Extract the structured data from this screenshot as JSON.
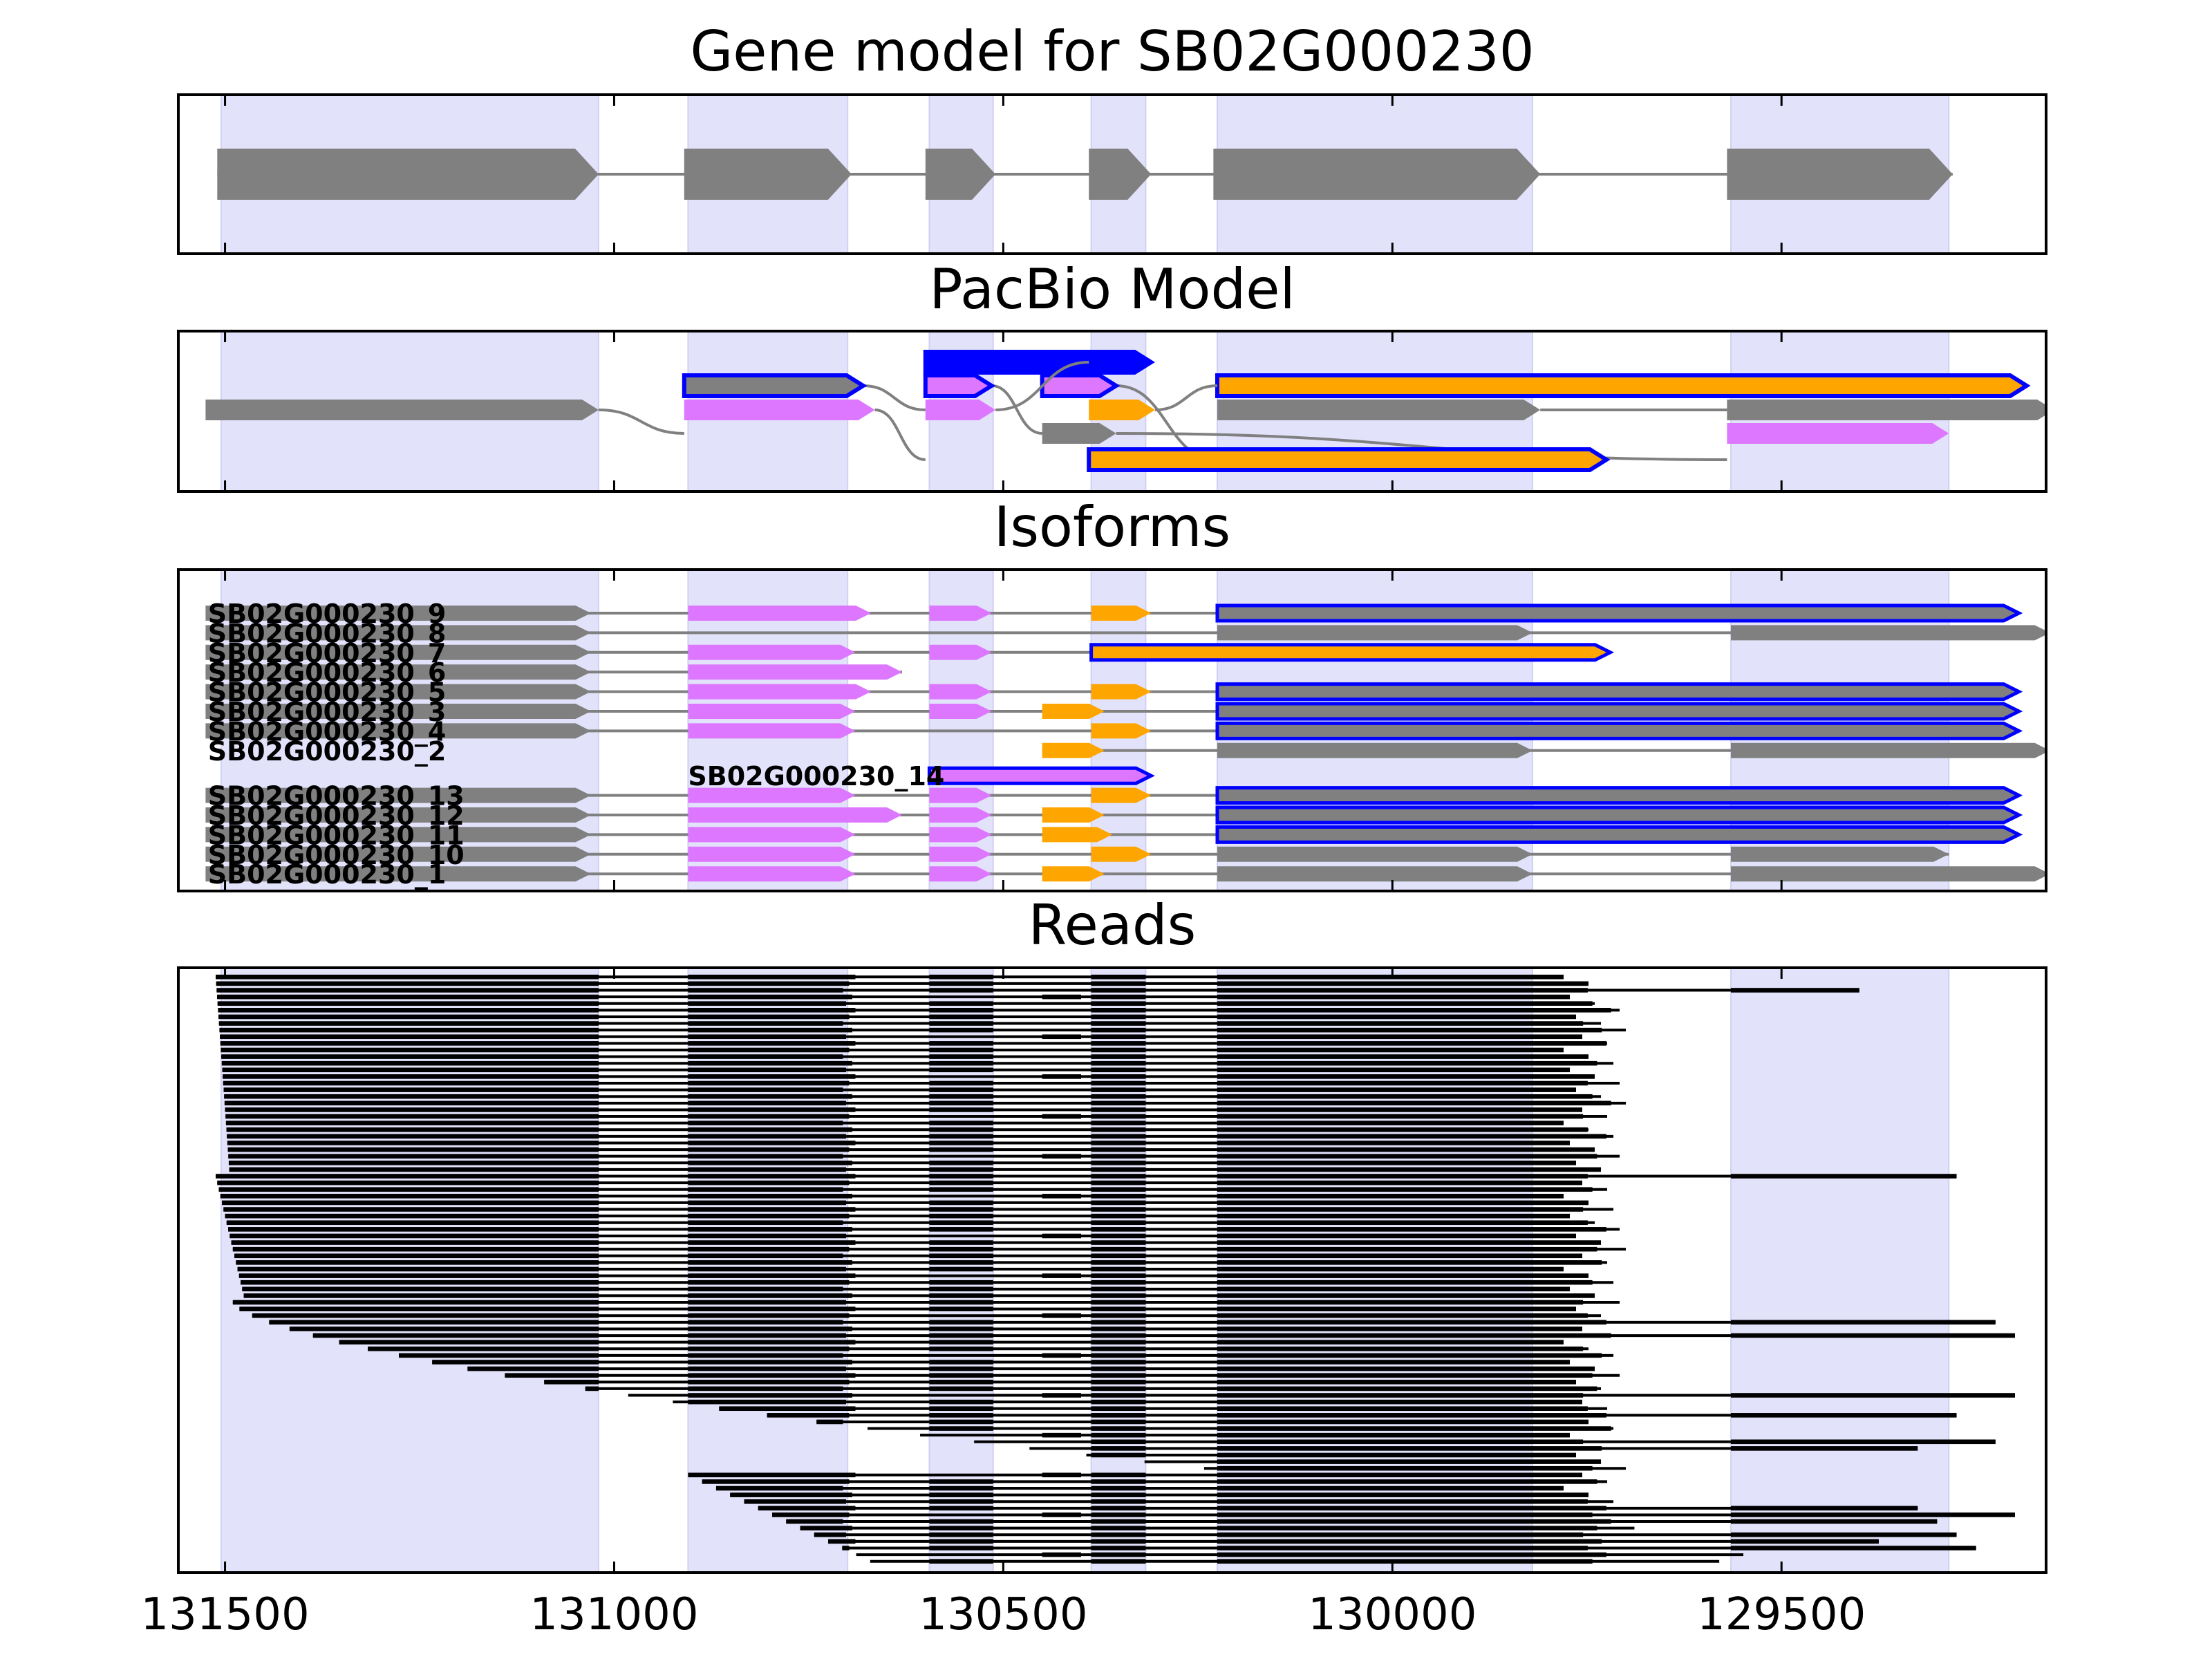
{
  "chart_data": {
    "type": "gene-structure",
    "title": "Gene model for SB02G000230",
    "xlim": [
      131560,
      129160
    ],
    "x_ticks": [
      131500,
      131000,
      130500,
      130000,
      129500
    ],
    "x_tick_labels": [
      "131500",
      "131000",
      "130500",
      "130000",
      "129500"
    ],
    "exon_shading": [
      [
        131505,
        131020
      ],
      [
        130905,
        130700
      ],
      [
        130595,
        130513
      ],
      [
        130387,
        130317
      ],
      [
        130225,
        129820
      ],
      [
        129565,
        129285
      ]
    ],
    "colors": {
      "exon_shade": "#e2e2fb",
      "gray": "#808080",
      "violet": "#dd77ff",
      "orange": "#ffa500",
      "blue": "#0000ff",
      "reads": "#000000"
    },
    "panels": [
      {
        "title": "Gene model for SB02G000230",
        "exons": [
          [
            131510,
            131020
          ],
          [
            130910,
            130695
          ],
          [
            130600,
            130510
          ],
          [
            130390,
            130310
          ],
          [
            130230,
            129810
          ],
          [
            129570,
            129280
          ]
        ]
      },
      {
        "title": "PacBio Model",
        "rows": [
          {
            "exons": [
              [
                130600,
                130310
              ]
            ],
            "color": "blue",
            "hl": true
          },
          {
            "exons": [
              [
                130910,
                130680
              ],
              [
                130600,
                130515
              ],
              [
                130450,
                130355
              ],
              [
                130225,
                129185
              ]
            ],
            "color": "mixed",
            "hl": true
          },
          {
            "exons": [
              [
                131525,
                131020
              ],
              [
                130910,
                130665
              ],
              [
                130600,
                130510
              ],
              [
                130390,
                130305
              ],
              [
                130225,
                129810
              ],
              [
                129570,
                129150
              ]
            ],
            "color": "mixed"
          },
          {
            "exons": [
              [
                130450,
                130355
              ],
              [
                129570,
                129285
              ]
            ],
            "color": "mixed"
          },
          {
            "exons": [
              [
                130390,
                129725
              ]
            ],
            "color": "orange",
            "hl": true
          }
        ]
      },
      {
        "title": "Isoforms",
        "isoforms": [
          {
            "name": "SB02G000230_9",
            "exons": [
              [
                131525,
                131030
              ],
              [
                130905,
                130670
              ],
              [
                130595,
                130515
              ],
              [
                130387,
                130310
              ],
              [
                130225,
                129195
              ]
            ],
            "cds": "blue"
          },
          {
            "name": "SB02G000230_8",
            "exons": [
              [
                131525,
                131030
              ],
              [
                130225,
                129820
              ],
              [
                129565,
                129155
              ]
            ],
            "cds": "gray"
          },
          {
            "name": "SB02G000230_7",
            "exons": [
              [
                131525,
                131030
              ],
              [
                130905,
                130690
              ],
              [
                130595,
                130515
              ],
              [
                130387,
                129720
              ]
            ],
            "cds": "orange"
          },
          {
            "name": "SB02G000230_6",
            "exons": [
              [
                131525,
                131030
              ],
              [
                130905,
                130630
              ]
            ],
            "cds": "violet"
          },
          {
            "name": "SB02G000230_5",
            "exons": [
              [
                131525,
                131030
              ],
              [
                130905,
                130670
              ],
              [
                130595,
                130515
              ],
              [
                130387,
                130310
              ],
              [
                130225,
                129195
              ]
            ],
            "cds": "blue"
          },
          {
            "name": "SB02G000230_3",
            "exons": [
              [
                131525,
                131030
              ],
              [
                130905,
                130690
              ],
              [
                130595,
                130515
              ],
              [
                130450,
                130370
              ],
              [
                130225,
                129195
              ]
            ],
            "cds": "blue"
          },
          {
            "name": "SB02G000230_4",
            "exons": [
              [
                131525,
                131030
              ],
              [
                130905,
                130690
              ],
              [
                130387,
                130310
              ],
              [
                130225,
                129195
              ]
            ],
            "cds": "blue"
          },
          {
            "name": "SB02G000230_2",
            "exons": [
              [
                130450,
                130370
              ],
              [
                130225,
                129820
              ],
              [
                129565,
                129155
              ]
            ],
            "cds": "gray"
          },
          {
            "name": "SB02G000230_14",
            "exons": [
              [
                130595,
                130310
              ]
            ],
            "cds": "blue"
          },
          {
            "name": "SB02G000230_13",
            "exons": [
              [
                131525,
                131030
              ],
              [
                130905,
                130690
              ],
              [
                130595,
                130515
              ],
              [
                130387,
                130310
              ],
              [
                130225,
                129195
              ]
            ],
            "cds": "blue"
          },
          {
            "name": "SB02G000230_12",
            "exons": [
              [
                131525,
                131030
              ],
              [
                130905,
                130630
              ],
              [
                130595,
                130515
              ],
              [
                130450,
                130370
              ],
              [
                130225,
                129195
              ]
            ],
            "cds": "blue"
          },
          {
            "name": "SB02G000230_11",
            "exons": [
              [
                131525,
                131030
              ],
              [
                130905,
                130690
              ],
              [
                130595,
                130515
              ],
              [
                130450,
                130360
              ],
              [
                130225,
                129195
              ]
            ],
            "cds": "blue"
          },
          {
            "name": "SB02G000230_10",
            "exons": [
              [
                131525,
                131030
              ],
              [
                130905,
                130690
              ],
              [
                130595,
                130515
              ],
              [
                130387,
                130310
              ],
              [
                130225,
                129820
              ],
              [
                129565,
                129285
              ]
            ],
            "cds": "gray"
          },
          {
            "name": "SB02G000230_1",
            "exons": [
              [
                131525,
                131030
              ],
              [
                130905,
                130690
              ],
              [
                130595,
                130515
              ],
              [
                130450,
                130370
              ],
              [
                130225,
                129820
              ],
              [
                129565,
                129155
              ]
            ],
            "cds": "gray"
          }
        ]
      },
      {
        "title": "Reads",
        "read_count": 89
      }
    ]
  }
}
